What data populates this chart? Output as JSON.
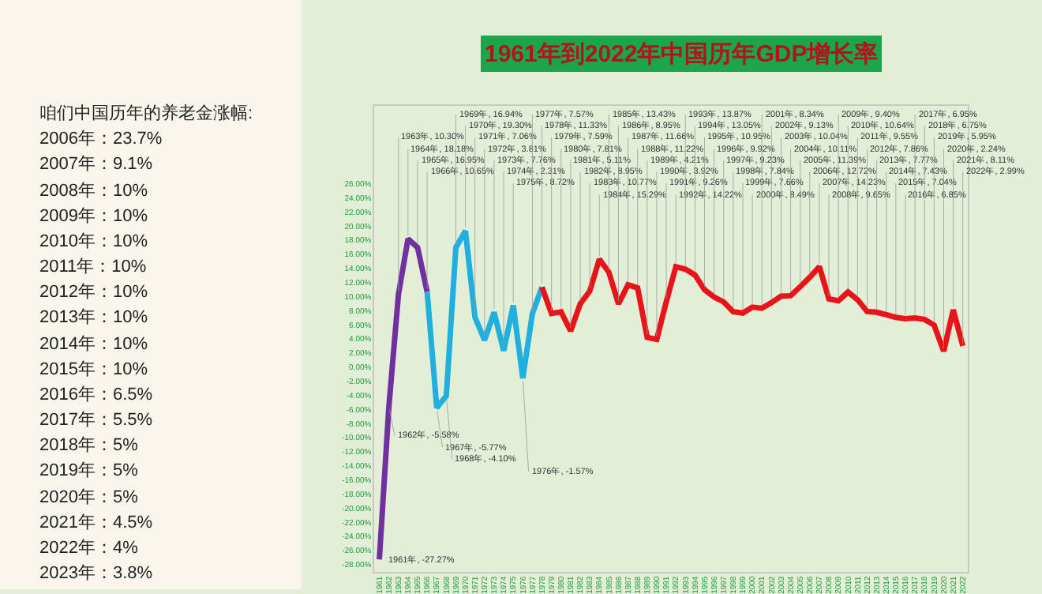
{
  "chart_data": [
    {
      "type": "other",
      "title": "咱们中国历年的养老金涨幅:",
      "annotations": [
        "2006年：23.7%",
        "2007年：9.1%",
        "2008年：10%",
        "2009年：10%",
        "2010年：10%",
        "2011年：10%",
        "2012年：10%",
        "2013年：10%",
        "2014年：10%",
        "2015年：10%",
        "2016年：6.5%",
        "2017年：5.5%",
        "2018年：5%",
        "2019年：5%",
        "2020年：5%",
        "2021年：4.5%",
        "2022年：4%",
        "2023年：3.8%"
      ]
    },
    {
      "type": "line",
      "title": "1961年到2022年中国历年GDP增长率",
      "categories": [
        "1961",
        "1962",
        "1963",
        "1964",
        "1965",
        "1966",
        "1967",
        "1968",
        "1969",
        "1970",
        "1971",
        "1972",
        "1973",
        "1974",
        "1975",
        "1976",
        "1977",
        "1978",
        "1979",
        "1980",
        "1981",
        "1982",
        "1983",
        "1984",
        "1985",
        "1986",
        "1987",
        "1988",
        "1989",
        "1990",
        "1991",
        "1992",
        "1993",
        "1994",
        "1995",
        "1996",
        "1997",
        "1998",
        "1999",
        "2000",
        "2001",
        "2002",
        "2003",
        "2004",
        "2005",
        "2006",
        "2007",
        "2008",
        "2009",
        "2010",
        "2011",
        "2012",
        "2013",
        "2014",
        "2015",
        "2016",
        "2017",
        "2018",
        "2019",
        "2020",
        "2021",
        "2022"
      ],
      "series": [
        {
          "color": "#7030a0",
          "values": [
            -27.27,
            -5.58,
            10.3,
            18.18,
            16.95,
            10.65,
            null,
            null,
            null,
            null,
            null,
            null,
            null,
            null,
            null,
            null,
            null,
            null,
            null,
            null,
            null,
            null,
            null,
            null,
            null,
            null,
            null,
            null,
            null,
            null,
            null,
            null,
            null,
            null,
            null,
            null,
            null,
            null,
            null,
            null,
            null,
            null,
            null,
            null,
            null,
            null,
            null,
            null,
            null,
            null,
            null,
            null,
            null,
            null,
            null,
            null,
            null,
            null,
            null,
            null,
            null,
            null
          ],
          "value_labels": [
            "1961年, -27.27%",
            "1962年, -5.58%",
            "1963年, 10.30%",
            "1964年, 18.18%",
            "1965年, 16.95%",
            "1966年, 10.65%",
            null,
            null,
            null,
            null,
            null,
            null,
            null,
            null,
            null,
            null,
            null,
            null,
            null,
            null,
            null,
            null,
            null,
            null,
            null,
            null,
            null,
            null,
            null,
            null,
            null,
            null,
            null,
            null,
            null,
            null,
            null,
            null,
            null,
            null,
            null,
            null,
            null,
            null,
            null,
            null,
            null,
            null,
            null,
            null,
            null,
            null,
            null,
            null,
            null,
            null,
            null,
            null,
            null,
            null,
            null,
            null
          ]
        },
        {
          "color": "#1fb0e0",
          "values": [
            null,
            null,
            null,
            null,
            null,
            10.65,
            -5.77,
            -4.1,
            16.94,
            19.3,
            7.06,
            3.81,
            7.76,
            2.31,
            8.72,
            -1.57,
            7.57,
            11.33,
            null,
            null,
            null,
            null,
            null,
            null,
            null,
            null,
            null,
            null,
            null,
            null,
            null,
            null,
            null,
            null,
            null,
            null,
            null,
            null,
            null,
            null,
            null,
            null,
            null,
            null,
            null,
            null,
            null,
            null,
            null,
            null,
            null,
            null,
            null,
            null,
            null,
            null,
            null,
            null,
            null,
            null,
            null,
            null
          ],
          "value_labels": [
            null,
            null,
            null,
            null,
            null,
            null,
            "1967年, -5.77%",
            "1968年, -4.10%",
            "1969年, 16.94%",
            "1970年, 19.30%",
            "1971年, 7.06%",
            "1972年, 3.81%",
            "1973年, 7.76%",
            "1974年, 2.31%",
            "1975年, 8.72%",
            "1976年, -1.57%",
            "1977年, 7.57%",
            "1978年, 11.33%",
            null,
            null,
            null,
            null,
            null,
            null,
            null,
            null,
            null,
            null,
            null,
            null,
            null,
            null,
            null,
            null,
            null,
            null,
            null,
            null,
            null,
            null,
            null,
            null,
            null,
            null,
            null,
            null,
            null,
            null,
            null,
            null,
            null,
            null,
            null,
            null,
            null,
            null,
            null,
            null,
            null,
            null,
            null,
            null
          ]
        },
        {
          "color": "#e8141a",
          "values": [
            null,
            null,
            null,
            null,
            null,
            null,
            null,
            null,
            null,
            null,
            null,
            null,
            null,
            null,
            null,
            null,
            null,
            11.33,
            7.59,
            7.81,
            5.11,
            8.95,
            10.77,
            15.29,
            13.43,
            8.95,
            11.66,
            11.22,
            4.21,
            3.92,
            9.26,
            14.22,
            13.87,
            13.05,
            10.95,
            9.92,
            9.23,
            7.84,
            7.66,
            8.49,
            8.34,
            9.13,
            10.04,
            10.11,
            11.39,
            12.72,
            14.23,
            9.65,
            9.4,
            10.64,
            9.55,
            7.86,
            7.77,
            7.43,
            7.04,
            6.85,
            6.95,
            6.75,
            5.95,
            2.24,
            8.11,
            2.99
          ],
          "value_labels": [
            null,
            null,
            null,
            null,
            null,
            null,
            null,
            null,
            null,
            null,
            null,
            null,
            null,
            null,
            null,
            null,
            null,
            null,
            "1979年, 7.59%",
            "1980年, 7.81%",
            "1981年, 5.11%",
            "1982年, 8.95%",
            "1983年, 10.77%",
            "1984年, 15.29%",
            "1985年, 13.43%",
            "1986年, 8.95%",
            "1987年, 11.66%",
            "1988年, 11.22%",
            "1989年, 4.21%",
            "1990年, 3.92%",
            "1991年, 9.26%",
            "1992年, 14.22%",
            "1993年, 13.87%",
            "1994年, 13.05%",
            "1995年, 10.95%",
            "1996年, 9.92%",
            "1997年, 9.23%",
            "1998年, 7.84%",
            "1999年, 7.66%",
            "2000年, 8.49%",
            "2001年, 8.34%",
            "2002年, 9.13%",
            "2003年, 10.04%",
            "2004年, 10.11%",
            "2005年, 11.39%",
            "2006年, 12.72%",
            "2007年, 14.23%",
            "2008年, 9.65%",
            "2009年, 9.40%",
            "2010年, 10.64%",
            "2011年, 9.55%",
            "2012年, 7.86%",
            "2013年, 7.77%",
            "2014年, 7.43%",
            "2015年, 7.04%",
            "2016年, 6.85%",
            "2017年, 6.95%",
            "2018年, 6.75%",
            "2019年, 5.95%",
            "2020年, 2.24%",
            "2021年, 8.11%",
            "2022年, 2.99%"
          ]
        }
      ],
      "ylim": [
        -29,
        37
      ],
      "yticks": [
        {
          "value": -28,
          "label": "-28.00%"
        },
        {
          "value": -26,
          "label": "-26.00%"
        },
        {
          "value": -24,
          "label": "-24.00%"
        },
        {
          "value": -22,
          "label": "-22.00%"
        },
        {
          "value": -20,
          "label": "-20.00%"
        },
        {
          "value": -18,
          "label": "-18.00%"
        },
        {
          "value": -16,
          "label": "-16.00%"
        },
        {
          "value": -14,
          "label": "-14.00%"
        },
        {
          "value": -12,
          "label": "-12.00%"
        },
        {
          "value": -10,
          "label": "-10.00%"
        },
        {
          "value": -8,
          "label": "-8.00%"
        },
        {
          "value": -6,
          "label": "-6.00%"
        },
        {
          "value": -4,
          "label": "-4.00%"
        },
        {
          "value": -2,
          "label": "-2.00%"
        },
        {
          "value": 0,
          "label": "0.00%"
        },
        {
          "value": 2,
          "label": "2.00%"
        },
        {
          "value": 4,
          "label": "4.00%"
        },
        {
          "value": 6,
          "label": "6.00%"
        },
        {
          "value": 8,
          "label": "8.00%"
        },
        {
          "value": 10,
          "label": "10.00%"
        },
        {
          "value": 12,
          "label": "12.00%"
        },
        {
          "value": 14,
          "label": "14.00%"
        },
        {
          "value": 16,
          "label": "16.00%"
        },
        {
          "value": 18,
          "label": "18.00%"
        },
        {
          "value": 20,
          "label": "20.00%"
        },
        {
          "value": 22,
          "label": "22.00%"
        },
        {
          "value": 24,
          "label": "24.00%"
        },
        {
          "value": 26,
          "label": "26.00%"
        }
      ],
      "grid": false
    }
  ]
}
